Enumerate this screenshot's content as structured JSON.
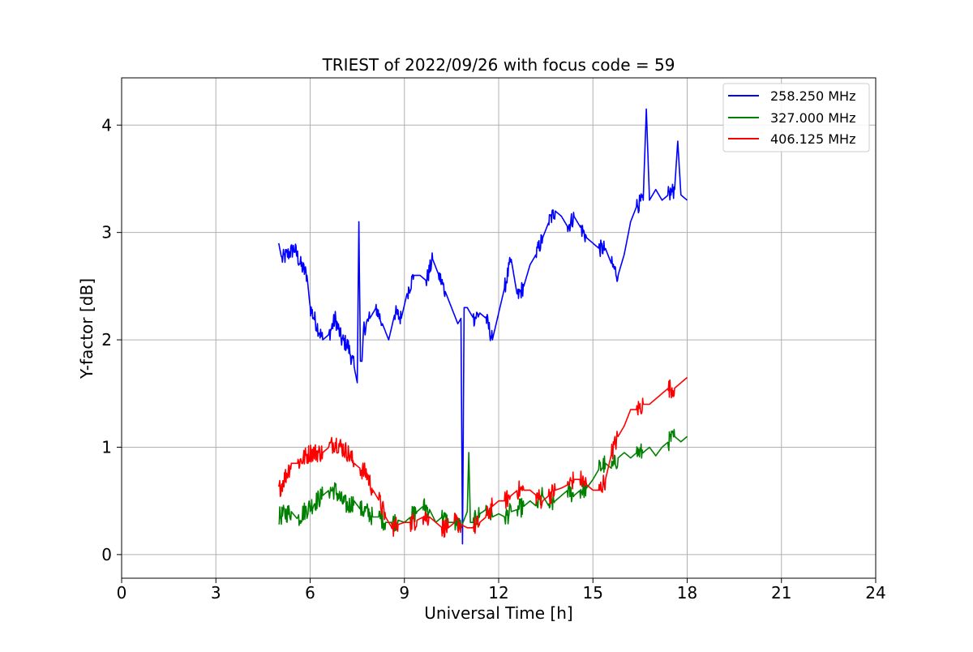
{
  "chart_data": {
    "type": "line",
    "title": "TRIEST of 2022/09/26 with focus code = 59",
    "xlabel": "Universal Time [h]",
    "ylabel": "Y-factor [dB]",
    "xlim": [
      0,
      24
    ],
    "ylim": [
      -0.22,
      4.44
    ],
    "xticks": [
      "0",
      "3",
      "6",
      "9",
      "12",
      "15",
      "18",
      "21",
      "24"
    ],
    "yticks": [
      "0",
      "1",
      "2",
      "3",
      "4"
    ],
    "grid": true,
    "legend_position": "top-right",
    "series": [
      {
        "name": "258.250 MHz",
        "color": "#0000ff",
        "x": [
          5.0,
          5.1,
          5.3,
          5.5,
          5.7,
          5.9,
          6.0,
          6.2,
          6.4,
          6.6,
          6.8,
          7.0,
          7.2,
          7.4,
          7.5,
          7.55,
          7.6,
          7.65,
          7.7,
          7.9,
          8.1,
          8.3,
          8.5,
          8.7,
          8.9,
          9.1,
          9.3,
          9.5,
          9.7,
          9.9,
          10.1,
          10.3,
          10.5,
          10.7,
          10.8,
          10.85,
          10.9,
          11.0,
          11.2,
          11.4,
          11.6,
          11.8,
          12.0,
          12.2,
          12.4,
          12.6,
          12.8,
          13.0,
          13.2,
          13.4,
          13.6,
          13.8,
          14.0,
          14.2,
          14.4,
          14.6,
          14.8,
          15.0,
          15.2,
          15.4,
          15.6,
          15.8,
          16.0,
          16.2,
          16.4,
          16.6,
          16.7,
          16.8,
          17.0,
          17.2,
          17.4,
          17.6,
          17.7,
          17.8,
          18.0
        ],
        "values": [
          2.9,
          2.75,
          2.8,
          2.85,
          2.7,
          2.6,
          2.3,
          2.15,
          2.0,
          2.05,
          2.2,
          2.0,
          1.95,
          1.75,
          1.6,
          3.1,
          1.8,
          1.8,
          2.1,
          2.2,
          2.3,
          2.15,
          2.0,
          2.25,
          2.2,
          2.45,
          2.6,
          2.6,
          2.55,
          2.75,
          2.6,
          2.45,
          2.3,
          2.15,
          2.2,
          0.1,
          2.3,
          2.3,
          2.2,
          2.25,
          2.2,
          2.0,
          2.25,
          2.5,
          2.75,
          2.4,
          2.5,
          2.7,
          2.8,
          2.95,
          3.1,
          3.2,
          3.15,
          3.05,
          3.15,
          3.05,
          2.95,
          2.9,
          2.85,
          2.85,
          2.7,
          2.6,
          2.8,
          3.1,
          3.25,
          3.3,
          4.15,
          3.3,
          3.4,
          3.3,
          3.35,
          3.4,
          3.85,
          3.35,
          3.3
        ]
      },
      {
        "name": "327.000 MHz",
        "color": "#008000",
        "x": [
          5.0,
          5.2,
          5.4,
          5.6,
          5.8,
          6.0,
          6.2,
          6.4,
          6.6,
          6.8,
          7.0,
          7.2,
          7.4,
          7.6,
          7.8,
          8.0,
          8.2,
          8.4,
          8.6,
          8.8,
          9.0,
          9.2,
          9.4,
          9.6,
          9.8,
          10.0,
          10.2,
          10.4,
          10.6,
          10.8,
          11.0,
          11.05,
          11.1,
          11.2,
          11.4,
          11.6,
          11.8,
          12.0,
          12.2,
          12.4,
          12.6,
          12.8,
          13.0,
          13.2,
          13.4,
          13.6,
          13.8,
          14.0,
          14.2,
          14.4,
          14.6,
          14.8,
          15.0,
          15.2,
          15.4,
          15.6,
          15.8,
          16.0,
          16.2,
          16.4,
          16.6,
          16.8,
          17.0,
          17.2,
          17.4,
          17.6,
          17.8,
          18.0
        ],
        "values": [
          0.35,
          0.38,
          0.4,
          0.33,
          0.4,
          0.45,
          0.5,
          0.55,
          0.6,
          0.6,
          0.5,
          0.45,
          0.5,
          0.42,
          0.4,
          0.35,
          0.35,
          0.3,
          0.3,
          0.32,
          0.3,
          0.35,
          0.4,
          0.45,
          0.42,
          0.3,
          0.35,
          0.3,
          0.3,
          0.25,
          0.4,
          0.95,
          0.3,
          0.3,
          0.38,
          0.42,
          0.35,
          0.38,
          0.35,
          0.4,
          0.42,
          0.45,
          0.5,
          0.45,
          0.55,
          0.45,
          0.5,
          0.55,
          0.6,
          0.55,
          0.6,
          0.62,
          0.7,
          0.8,
          0.85,
          0.8,
          0.9,
          0.95,
          0.9,
          0.95,
          0.95,
          1.0,
          0.92,
          1.0,
          1.05,
          1.1,
          1.05,
          1.1
        ]
      },
      {
        "name": "406.125 MHz",
        "color": "#ff0000",
        "x": [
          5.0,
          5.2,
          5.4,
          5.6,
          5.8,
          6.0,
          6.2,
          6.4,
          6.6,
          6.8,
          7.0,
          7.2,
          7.4,
          7.6,
          7.8,
          8.0,
          8.2,
          8.4,
          8.6,
          8.8,
          9.0,
          9.2,
          9.4,
          9.6,
          9.8,
          10.0,
          10.2,
          10.4,
          10.6,
          10.8,
          11.0,
          11.2,
          11.4,
          11.6,
          11.8,
          12.0,
          12.2,
          12.4,
          12.6,
          12.8,
          13.0,
          13.2,
          13.4,
          13.6,
          13.8,
          14.0,
          14.2,
          14.4,
          14.6,
          14.8,
          15.0,
          15.2,
          15.4,
          15.6,
          15.8,
          16.0,
          16.2,
          16.4,
          16.6,
          16.8,
          17.0,
          17.2,
          17.4,
          17.6,
          17.8,
          18.0
        ],
        "values": [
          0.6,
          0.72,
          0.85,
          0.85,
          0.9,
          0.95,
          0.95,
          0.95,
          1.0,
          1.05,
          1.0,
          0.95,
          0.85,
          0.8,
          0.75,
          0.6,
          0.5,
          0.35,
          0.25,
          0.28,
          0.3,
          0.3,
          0.32,
          0.35,
          0.35,
          0.3,
          0.25,
          0.25,
          0.3,
          0.28,
          0.25,
          0.25,
          0.3,
          0.35,
          0.45,
          0.5,
          0.5,
          0.55,
          0.6,
          0.6,
          0.6,
          0.55,
          0.5,
          0.55,
          0.6,
          0.62,
          0.65,
          0.7,
          0.7,
          0.65,
          0.6,
          0.6,
          0.7,
          0.95,
          1.1,
          1.2,
          1.35,
          1.35,
          1.4,
          1.4,
          1.45,
          1.5,
          1.55,
          1.55,
          1.6,
          1.65
        ]
      }
    ]
  }
}
